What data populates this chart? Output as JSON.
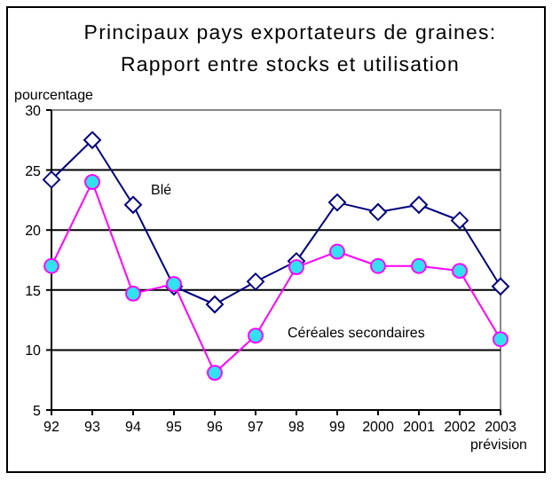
{
  "chart_data": {
    "type": "line",
    "title": "Principaux pays exportateurs de graines:\nRapport entre stocks et utilisation",
    "ylabel": "pourcentage",
    "categories": [
      "92",
      "93",
      "94",
      "95",
      "96",
      "97",
      "98",
      "99",
      "2000",
      "2001",
      "2002",
      "2003"
    ],
    "series": [
      {
        "name": "Blé",
        "color": "#000080",
        "marker": "diamond",
        "values": [
          24.2,
          27.5,
          22.1,
          15.3,
          13.8,
          15.7,
          17.4,
          22.3,
          21.5,
          22.1,
          20.8,
          15.3
        ]
      },
      {
        "name": "Céréales secondaires",
        "color": "#ff00ff",
        "marker": "circle",
        "values": [
          17,
          24,
          14.7,
          15.5,
          8.1,
          11.2,
          16.9,
          18.2,
          17,
          17,
          16.6,
          10.9
        ]
      }
    ],
    "ylim": [
      5,
      30
    ],
    "yticks": [
      5,
      10,
      15,
      20,
      25,
      30
    ],
    "grid": "y",
    "annotations": [
      "prévision"
    ]
  }
}
